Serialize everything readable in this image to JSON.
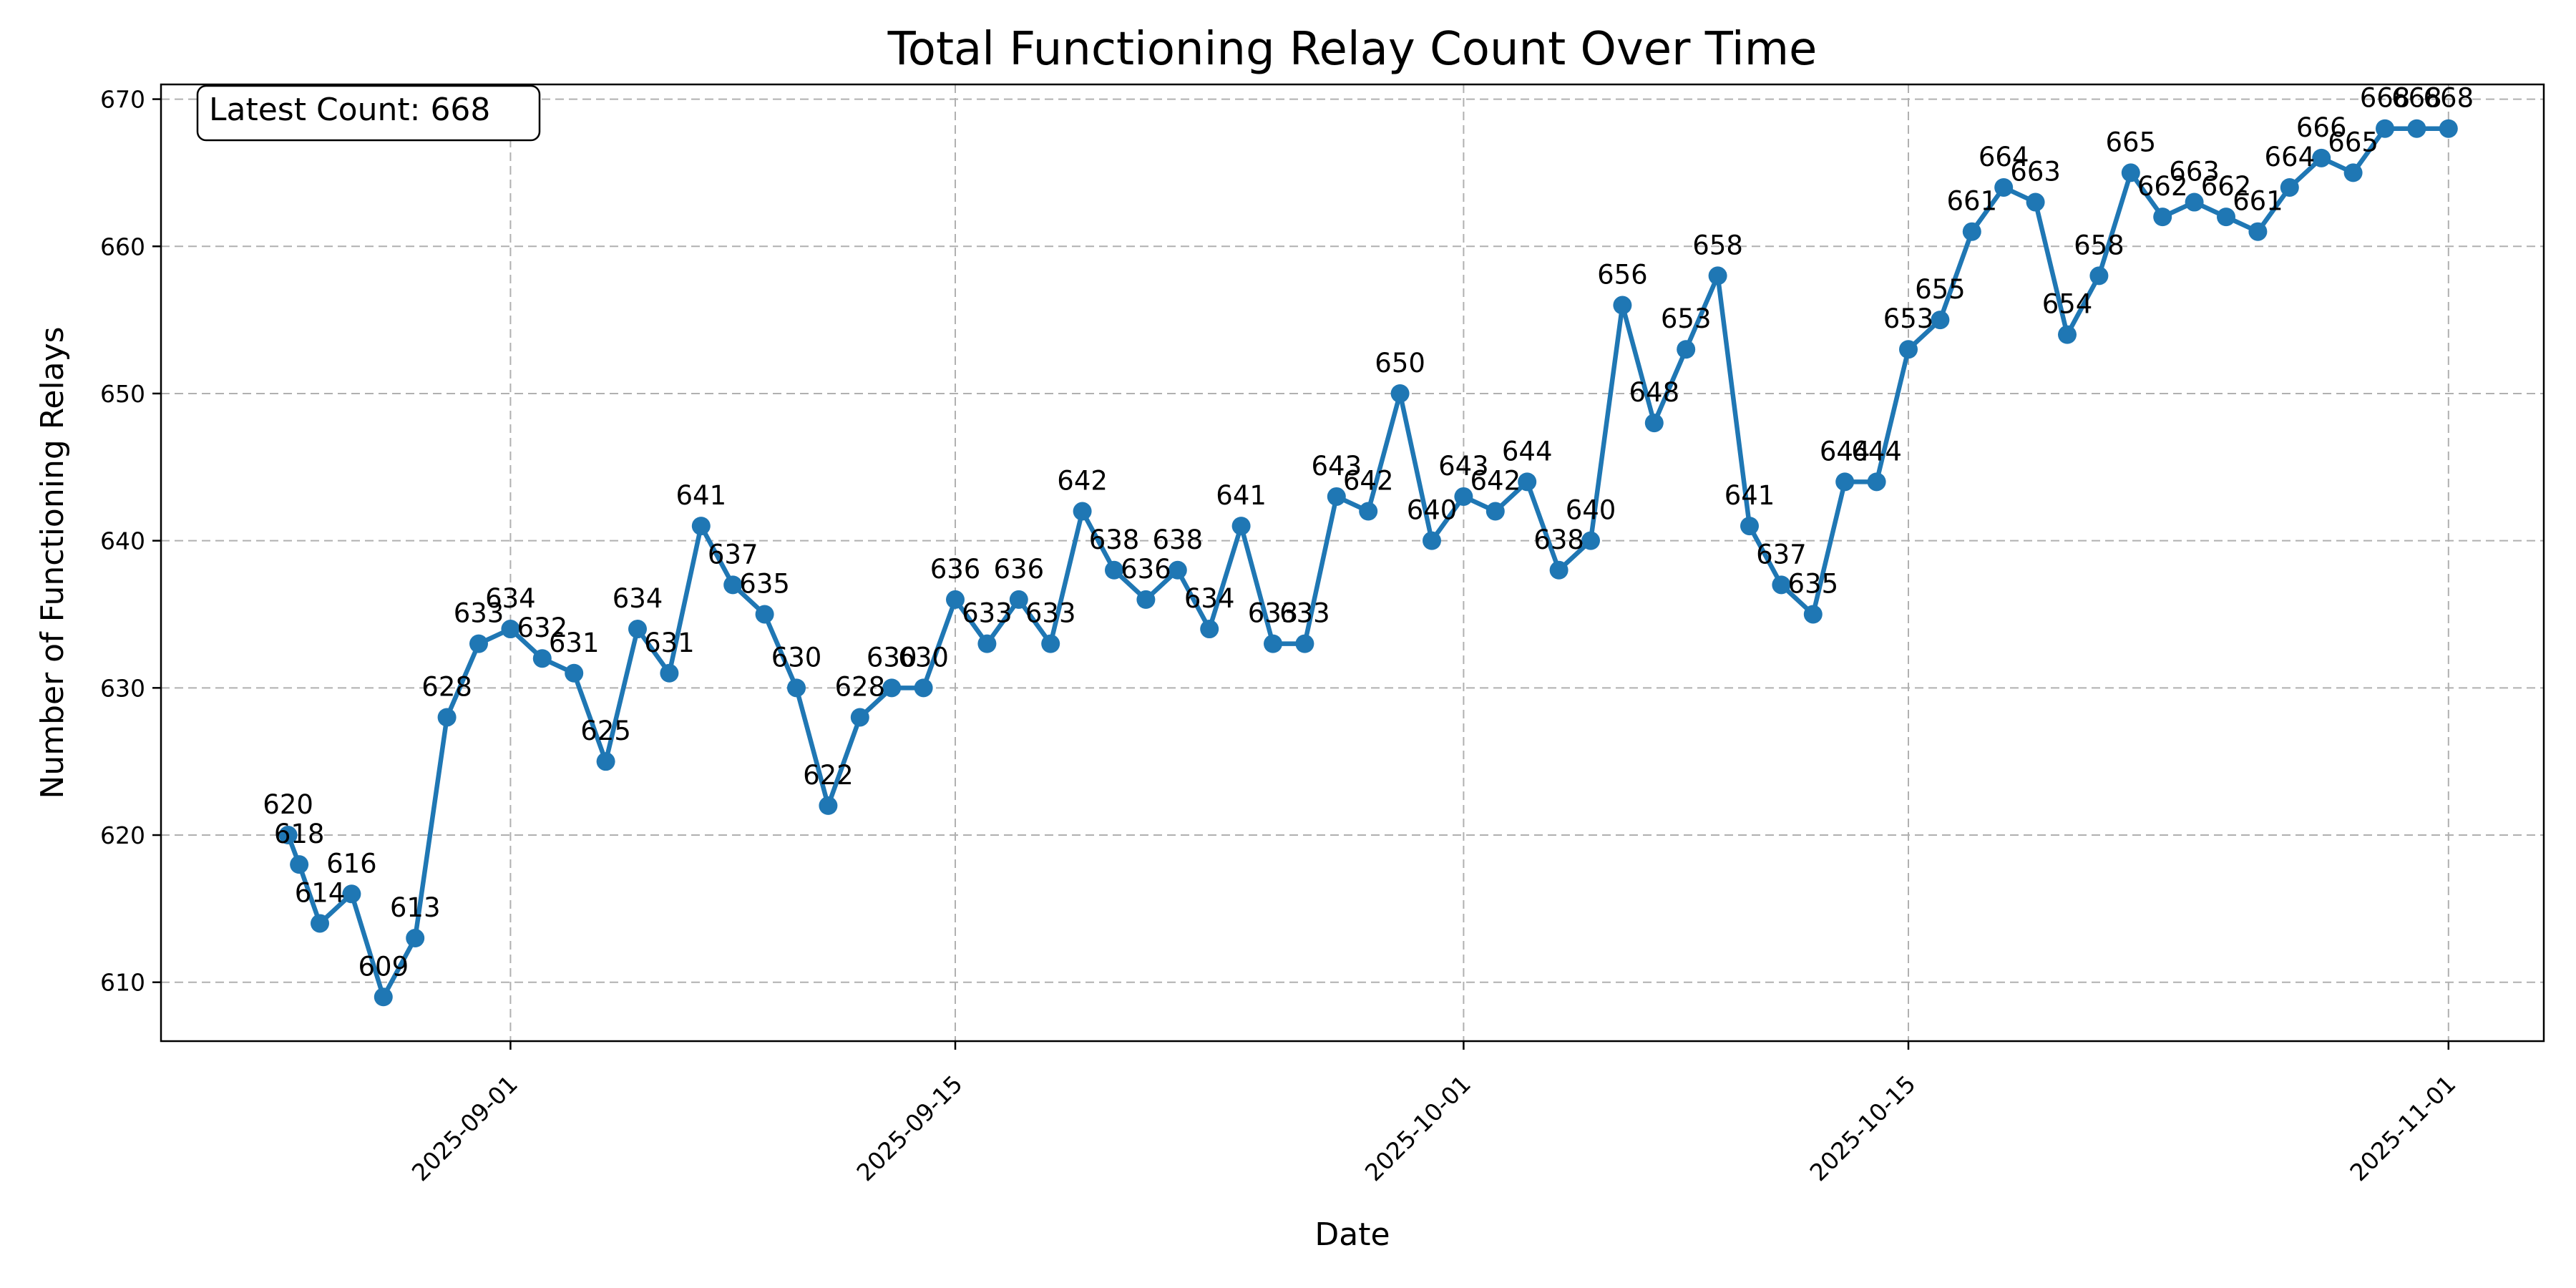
{
  "chart_data": {
    "type": "line",
    "title": "Total Functioning Relay Count Over Time",
    "xlabel": "Date",
    "ylabel": "Number of Functioning Relays",
    "annotation": "Latest Count: 668",
    "grid": true,
    "xlim": [
      "2025-08-21",
      "2025-11-04"
    ],
    "ylim": [
      606,
      671
    ],
    "x_ticks": [
      "2025-09-01",
      "2025-09-15",
      "2025-10-01",
      "2025-10-15",
      "2025-11-01"
    ],
    "y_ticks": [
      610,
      620,
      630,
      640,
      650,
      660,
      670
    ],
    "series": [
      {
        "color": "#1f77b4",
        "points": [
          {
            "x": "2025-08-25",
            "y": 620
          },
          {
            "x": "2025-08-25",
            "y": 618
          },
          {
            "x": "2025-08-26",
            "y": 614
          },
          {
            "x": "2025-08-27",
            "y": 616
          },
          {
            "x": "2025-08-28",
            "y": 609
          },
          {
            "x": "2025-08-29",
            "y": 613
          },
          {
            "x": "2025-08-30",
            "y": 628
          },
          {
            "x": "2025-08-31",
            "y": 633
          },
          {
            "x": "2025-09-01",
            "y": 634
          },
          {
            "x": "2025-09-02",
            "y": 632
          },
          {
            "x": "2025-09-03",
            "y": 631
          },
          {
            "x": "2025-09-04",
            "y": 625
          },
          {
            "x": "2025-09-05",
            "y": 634
          },
          {
            "x": "2025-09-06",
            "y": 631
          },
          {
            "x": "2025-09-07",
            "y": 641
          },
          {
            "x": "2025-09-08",
            "y": 637
          },
          {
            "x": "2025-09-09",
            "y": 635
          },
          {
            "x": "2025-09-10",
            "y": 630
          },
          {
            "x": "2025-09-11",
            "y": 622
          },
          {
            "x": "2025-09-12",
            "y": 628
          },
          {
            "x": "2025-09-13",
            "y": 630
          },
          {
            "x": "2025-09-14",
            "y": 630
          },
          {
            "x": "2025-09-15",
            "y": 636
          },
          {
            "x": "2025-09-16",
            "y": 633
          },
          {
            "x": "2025-09-17",
            "y": 636
          },
          {
            "x": "2025-09-18",
            "y": 633
          },
          {
            "x": "2025-09-19",
            "y": 642
          },
          {
            "x": "2025-09-20",
            "y": 638
          },
          {
            "x": "2025-09-21",
            "y": 636
          },
          {
            "x": "2025-09-22",
            "y": 638
          },
          {
            "x": "2025-09-23",
            "y": 634
          },
          {
            "x": "2025-09-24",
            "y": 641
          },
          {
            "x": "2025-09-25",
            "y": 633
          },
          {
            "x": "2025-09-26",
            "y": 633
          },
          {
            "x": "2025-09-27",
            "y": 643
          },
          {
            "x": "2025-09-28",
            "y": 642
          },
          {
            "x": "2025-09-29",
            "y": 650
          },
          {
            "x": "2025-09-30",
            "y": 640
          },
          {
            "x": "2025-10-01",
            "y": 643
          },
          {
            "x": "2025-10-02",
            "y": 642
          },
          {
            "x": "2025-10-03",
            "y": 644
          },
          {
            "x": "2025-10-04",
            "y": 638
          },
          {
            "x": "2025-10-05",
            "y": 640
          },
          {
            "x": "2025-10-06",
            "y": 656
          },
          {
            "x": "2025-10-07",
            "y": 648
          },
          {
            "x": "2025-10-08",
            "y": 653
          },
          {
            "x": "2025-10-09",
            "y": 658
          },
          {
            "x": "2025-10-10",
            "y": 641
          },
          {
            "x": "2025-10-11",
            "y": 637
          },
          {
            "x": "2025-10-12",
            "y": 635
          },
          {
            "x": "2025-10-13",
            "y": 644
          },
          {
            "x": "2025-10-14",
            "y": 644
          },
          {
            "x": "2025-10-15",
            "y": 653
          },
          {
            "x": "2025-10-16",
            "y": 655
          },
          {
            "x": "2025-10-17",
            "y": 661
          },
          {
            "x": "2025-10-18",
            "y": 664
          },
          {
            "x": "2025-10-19",
            "y": 663
          },
          {
            "x": "2025-10-20",
            "y": 654
          },
          {
            "x": "2025-10-21",
            "y": 658
          },
          {
            "x": "2025-10-22",
            "y": 665
          },
          {
            "x": "2025-10-23",
            "y": 662
          },
          {
            "x": "2025-10-24",
            "y": 663
          },
          {
            "x": "2025-10-25",
            "y": 662
          },
          {
            "x": "2025-10-26",
            "y": 661
          },
          {
            "x": "2025-10-27",
            "y": 664
          },
          {
            "x": "2025-10-28",
            "y": 666
          },
          {
            "x": "2025-10-29",
            "y": 665
          },
          {
            "x": "2025-10-30",
            "y": 668
          },
          {
            "x": "2025-10-31",
            "y": 668
          },
          {
            "x": "2025-11-01",
            "y": 668
          }
        ]
      }
    ]
  }
}
